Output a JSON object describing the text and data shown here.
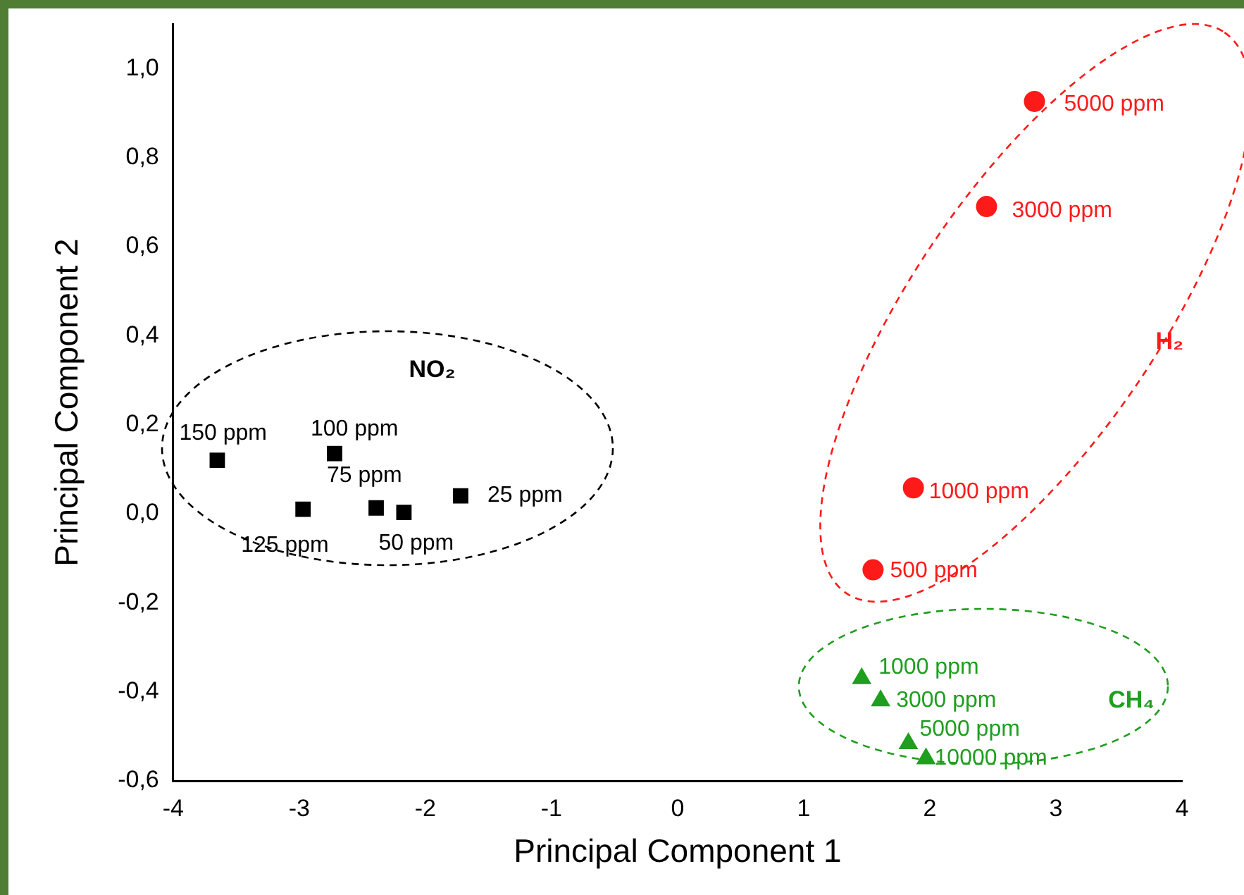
{
  "chart_data": {
    "type": "scatter",
    "xlabel": "Principal Component 1",
    "ylabel": "Principal Component 2",
    "xlim": [
      -4,
      4
    ],
    "ylim": [
      -0.6,
      1.1
    ],
    "xticks": [
      -4,
      -3,
      -2,
      -1,
      0,
      1,
      2,
      3,
      4
    ],
    "yticks": [
      {
        "value": -0.6,
        "label": "-0,6"
      },
      {
        "value": -0.4,
        "label": "-0,4"
      },
      {
        "value": -0.2,
        "label": "-0,2"
      },
      {
        "value": 0,
        "label": "0,0"
      },
      {
        "value": 0.2,
        "label": "0,2"
      },
      {
        "value": 0.4,
        "label": "0,4"
      },
      {
        "value": 0.6,
        "label": "0,6"
      },
      {
        "value": 0.8,
        "label": "0,8"
      },
      {
        "value": 1.0,
        "label": "1,0"
      }
    ],
    "grid": false,
    "legend": false,
    "series": [
      {
        "name": "NO₂",
        "color": "#000000",
        "marker": "square",
        "x": [
          -3.65,
          -2.72,
          -2.97,
          -2.39,
          -2.17,
          -1.72
        ],
        "values": [
          0.12,
          0.135,
          0.01,
          0.013,
          0.003,
          0.04
        ]
      },
      {
        "name": "H₂",
        "color": "#ff1a1a",
        "marker": "circle",
        "x": [
          2.83,
          2.45,
          1.87,
          1.55
        ],
        "values": [
          0.926,
          0.69,
          0.058,
          -0.126
        ]
      },
      {
        "name": "CH₄",
        "color": "#1f9e1f",
        "marker": "triangle",
        "x": [
          1.46,
          1.61,
          1.83,
          1.97
        ],
        "values": [
          -0.37,
          -0.42,
          -0.516,
          -0.55
        ]
      }
    ],
    "annotations": [
      {
        "text": "150 ppm",
        "x": -3.65,
        "y": 0.12
      },
      {
        "text": "100 ppm",
        "x": -2.72,
        "y": 0.135
      },
      {
        "text": "125 ppm",
        "x": -2.97,
        "y": 0.01
      },
      {
        "text": "75 ppm",
        "x": -2.39,
        "y": 0.013
      },
      {
        "text": "50 ppm",
        "x": -2.17,
        "y": 0.003
      },
      {
        "text": "25 ppm",
        "x": -1.72,
        "y": 0.04
      },
      {
        "text": "5000 ppm",
        "x": 2.83,
        "y": 0.926
      },
      {
        "text": "3000 ppm",
        "x": 2.45,
        "y": 0.69
      },
      {
        "text": "1000 ppm",
        "x": 1.87,
        "y": 0.058
      },
      {
        "text": "500 ppm",
        "x": 1.55,
        "y": -0.126
      },
      {
        "text": "1000 ppm",
        "x": 1.46,
        "y": -0.37
      },
      {
        "text": "3000 ppm",
        "x": 1.61,
        "y": -0.42
      },
      {
        "text": "5000 ppm",
        "x": 1.83,
        "y": -0.516
      },
      {
        "text": "10000 ppm",
        "x": 1.97,
        "y": -0.55
      }
    ]
  }
}
